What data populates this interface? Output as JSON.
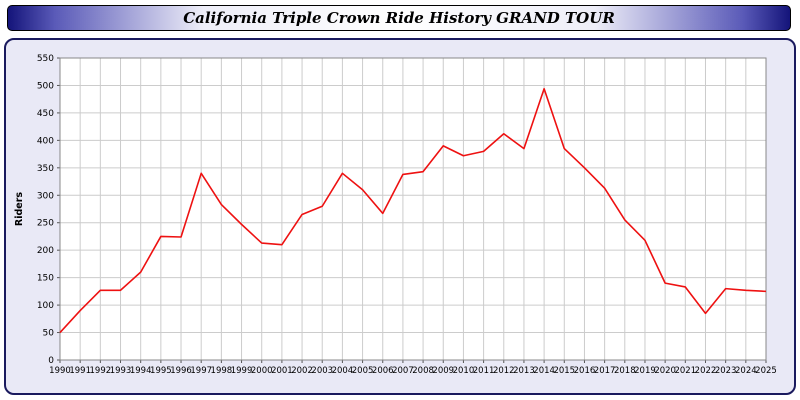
{
  "title": "California Triple Crown Ride History GRAND TOUR",
  "chart_data": {
    "type": "line",
    "title": "California Triple Crown Ride History GRAND TOUR",
    "xlabel": "",
    "ylabel": "Riders",
    "ylim": [
      0,
      550
    ],
    "ytick_step": 50,
    "grid": true,
    "legend": "none",
    "line_color": "#ee1111",
    "plot_bg": "#ffffff",
    "grid_color": "#cccccc",
    "x": [
      1990,
      1991,
      1992,
      1993,
      1994,
      1995,
      1996,
      1997,
      1998,
      1999,
      2000,
      2001,
      2002,
      2003,
      2004,
      2005,
      2006,
      2007,
      2008,
      2009,
      2010,
      2011,
      2012,
      2013,
      2014,
      2015,
      2016,
      2017,
      2018,
      2019,
      2020,
      2021,
      2022,
      2023,
      2024,
      2025
    ],
    "series": [
      {
        "name": "Riders",
        "values": [
          50,
          90,
          127,
          127,
          160,
          225,
          224,
          340,
          283,
          247,
          213,
          210,
          265,
          280,
          340,
          310,
          267,
          338,
          343,
          390,
          372,
          380,
          412,
          385,
          494,
          385,
          350,
          313,
          255,
          218,
          140,
          133,
          85,
          130,
          127,
          125
        ]
      }
    ]
  }
}
